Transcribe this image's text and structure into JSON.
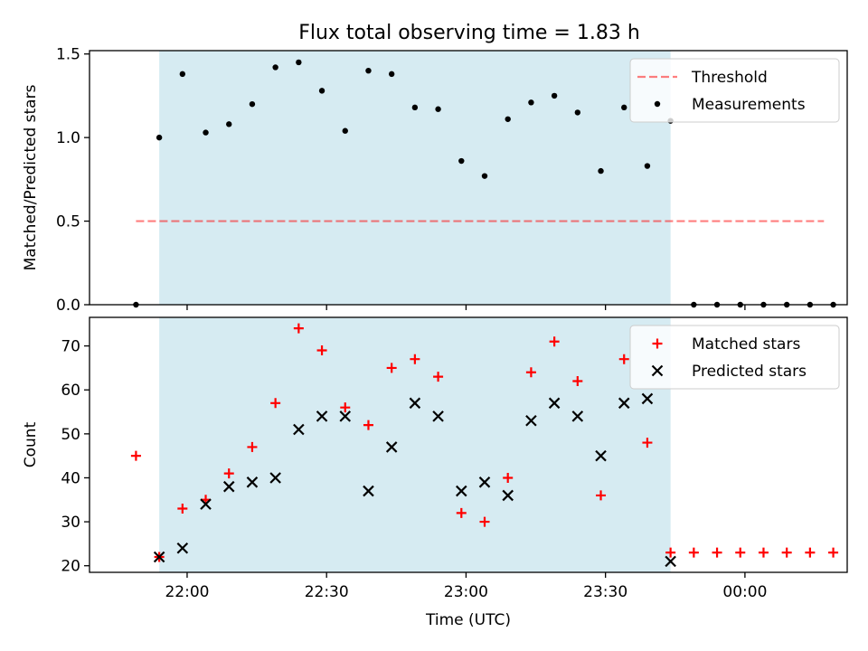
{
  "title": "Flux total observing time = 1.83 h",
  "colors": {
    "band": "#add8e6",
    "threshold": "#ff0000",
    "measurement": "#000000",
    "matched": "#ff0000",
    "predicted": "#000000"
  },
  "chart_data": [
    {
      "type": "scatter",
      "panel": "top",
      "ylabel": "Matched/Predicted stars",
      "xlabel": "",
      "ylim": [
        0,
        1.52
      ],
      "yticks": [
        "0.0",
        "0.5",
        "1.0",
        "1.5"
      ],
      "ytick_values": [
        0,
        0.5,
        1.0,
        1.5
      ],
      "xlim": [
        "21:39",
        "00:22"
      ],
      "xticks": [
        "22:00",
        "22:30",
        "23:00",
        "23:30",
        "00:00"
      ],
      "shaded_interval": [
        "21:54",
        "23:44"
      ],
      "threshold": {
        "name": "Threshold",
        "value": 0.5,
        "x_range": [
          "21:49",
          "00:17"
        ]
      },
      "legend": {
        "placement": "upper right",
        "entries": [
          "Threshold",
          "Measurements"
        ]
      },
      "series": [
        {
          "name": "Measurements",
          "marker": "dot",
          "x": [
            "21:49",
            "21:54",
            "21:59",
            "22:04",
            "22:09",
            "22:14",
            "22:19",
            "22:24",
            "22:29",
            "22:34",
            "22:39",
            "22:44",
            "22:49",
            "22:54",
            "22:59",
            "23:04",
            "23:09",
            "23:14",
            "23:19",
            "23:24",
            "23:29",
            "23:34",
            "23:39",
            "23:44",
            "23:49",
            "23:54",
            "23:59",
            "00:04",
            "00:09",
            "00:14",
            "00:19"
          ],
          "y": [
            0.0,
            1.0,
            1.38,
            1.03,
            1.08,
            1.2,
            1.42,
            1.45,
            1.28,
            1.04,
            1.4,
            1.38,
            1.18,
            1.17,
            0.86,
            0.77,
            1.11,
            1.21,
            1.25,
            1.15,
            0.8,
            1.18,
            0.83,
            1.1,
            0.0,
            0.0,
            0.0,
            0.0,
            0.0,
            0.0,
            0.0
          ]
        }
      ]
    },
    {
      "type": "scatter",
      "panel": "bottom",
      "ylabel": "Count",
      "xlabel": "Time (UTC)",
      "ylim": [
        18.5,
        76.5
      ],
      "yticks": [
        "20",
        "30",
        "40",
        "50",
        "60",
        "70"
      ],
      "ytick_values": [
        20,
        30,
        40,
        50,
        60,
        70
      ],
      "xlim": [
        "21:39",
        "00:22"
      ],
      "xticks": [
        "22:00",
        "22:30",
        "23:00",
        "23:30",
        "00:00"
      ],
      "shaded_interval": [
        "21:54",
        "23:44"
      ],
      "legend": {
        "placement": "upper right",
        "entries": [
          "Matched stars",
          "Predicted stars"
        ]
      },
      "series": [
        {
          "name": "Matched stars",
          "marker": "plus",
          "x": [
            "21:49",
            "21:54",
            "21:59",
            "22:04",
            "22:09",
            "22:14",
            "22:19",
            "22:24",
            "22:29",
            "22:34",
            "22:39",
            "22:44",
            "22:49",
            "22:54",
            "22:59",
            "23:04",
            "23:09",
            "23:14",
            "23:19",
            "23:24",
            "23:29",
            "23:34",
            "23:39",
            "23:44",
            "23:49",
            "23:54",
            "23:59",
            "00:04",
            "00:09",
            "00:14",
            "00:19"
          ],
          "y": [
            45,
            22,
            33,
            35,
            41,
            47,
            57,
            74,
            69,
            56,
            52,
            65,
            67,
            63,
            32,
            30,
            40,
            64,
            71,
            62,
            36,
            67,
            48,
            23,
            23,
            23,
            23,
            23,
            23,
            23,
            23
          ]
        },
        {
          "name": "Predicted stars",
          "marker": "x",
          "x": [
            "21:54",
            "21:59",
            "22:04",
            "22:09",
            "22:14",
            "22:19",
            "22:24",
            "22:29",
            "22:34",
            "22:39",
            "22:44",
            "22:49",
            "22:54",
            "22:59",
            "23:04",
            "23:09",
            "23:14",
            "23:19",
            "23:24",
            "23:29",
            "23:34",
            "23:39",
            "23:44"
          ],
          "y": [
            22,
            24,
            34,
            38,
            39,
            40,
            51,
            54,
            54,
            37,
            47,
            57,
            54,
            37,
            39,
            36,
            53,
            57,
            54,
            45,
            57,
            58,
            21
          ]
        }
      ]
    }
  ]
}
